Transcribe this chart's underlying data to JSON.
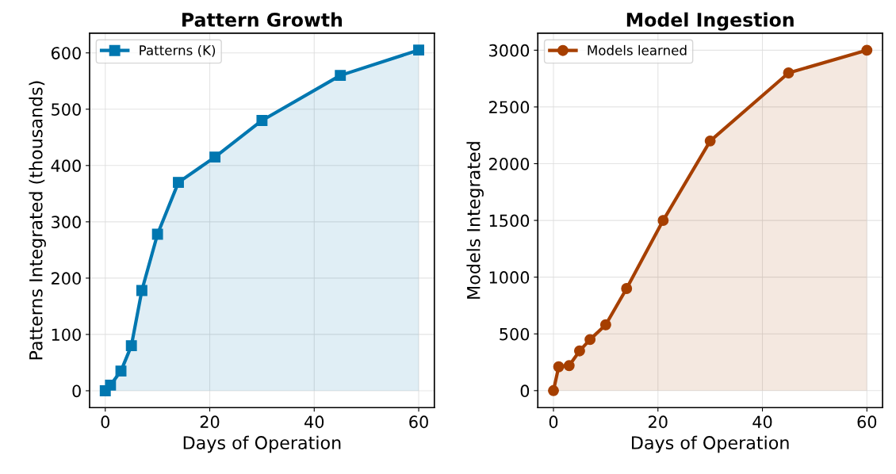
{
  "chart_data": [
    {
      "type": "area",
      "title": "Pattern Growth",
      "xlabel": "Days of Operation",
      "ylabel": "Patterns Integrated (thousands)",
      "x": [
        0,
        1,
        3,
        5,
        7,
        10,
        14,
        21,
        30,
        45,
        60
      ],
      "series": [
        {
          "name": "Patterns (K)",
          "color": "#0077b0",
          "values": [
            0,
            10,
            35,
            80,
            178,
            278,
            370,
            415,
            480,
            560,
            605
          ]
        }
      ],
      "xlim": [
        -3,
        63
      ],
      "xticks": [
        0,
        20,
        40,
        60
      ],
      "ylim": [
        -30,
        635
      ],
      "yticks": [
        0,
        100,
        200,
        300,
        400,
        500,
        600
      ],
      "grid": true,
      "legend": "top left",
      "marker": "square",
      "line_style": "solid"
    },
    {
      "type": "area",
      "title": "Model Ingestion",
      "xlabel": "Days of Operation",
      "ylabel": "Models Integrated",
      "x": [
        0,
        1,
        3,
        5,
        7,
        10,
        14,
        21,
        30,
        45,
        60
      ],
      "series": [
        {
          "name": "Models learned",
          "color": "#a63f00",
          "values": [
            0,
            210,
            220,
            350,
            450,
            580,
            900,
            1500,
            2200,
            2800,
            3000
          ]
        }
      ],
      "xlim": [
        -3,
        63
      ],
      "xticks": [
        0,
        20,
        40,
        60
      ],
      "ylim": [
        -150,
        3150
      ],
      "yticks": [
        0,
        500,
        1000,
        1500,
        2000,
        2500,
        3000
      ],
      "grid": true,
      "legend": "top left",
      "marker": "circle",
      "line_style": "solid"
    }
  ]
}
